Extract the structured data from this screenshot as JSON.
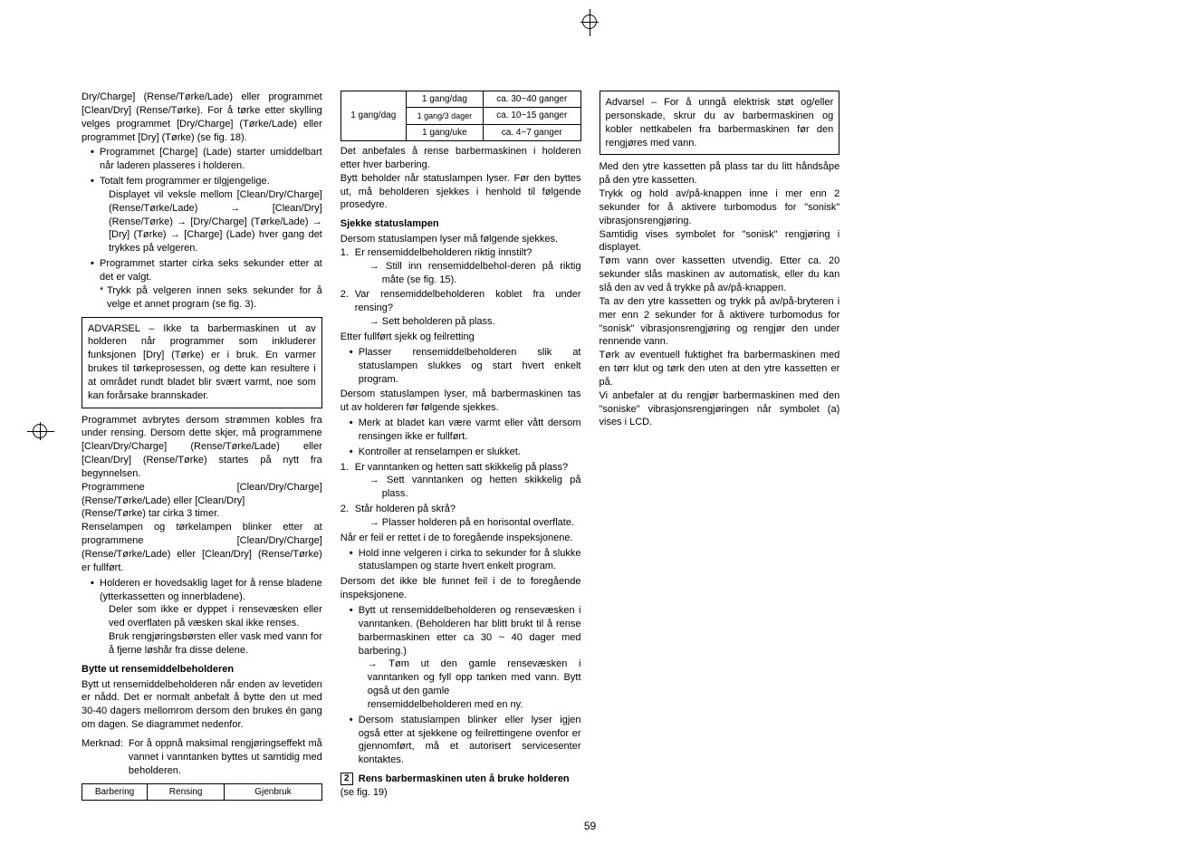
{
  "page_number": "59",
  "col1": {
    "intro": "Dry/Charge] (Rense/Tørke/Lade) eller programmet [Clean/Dry] (Rense/Tørke). For å tørke etter skylling velges programmet [Dry/Charge] (Tørke/Lade) eller programmet [Dry] (Tørke) (se fig. 18).",
    "b1": "Programmet [Charge] (Lade) starter umiddelbart når laderen plasseres i holderen.",
    "b2": "Totalt fem programmer er tilgjengelige.",
    "b2sub": "Displayet vil veksle mellom [Clean/Dry/Charge] (Rense/Tørke/Lade) → [Clean/Dry] (Rense/Tørke) → [Dry/Charge] (Tørke/Lade) → [Dry] (Tørke) → [Charge] (Lade) hver gang det trykkes på velgeren.",
    "b3": "Programmet starter cirka seks sekunder etter at det er valgt.",
    "b3note": "Trykk på velgeren innen seks sekunder for å velge et annet program (se fig. 3).",
    "warn": "ADVARSEL – Ikke ta barbermaskinen ut av holderen når programmer som inkluderer funksjonen [Dry] (Tørke) er i bruk. En varmer brukes til tørkeprosessen, og dette kan resultere i at området rundt bladet blir svært varmt, noe som kan forårsake brannskader.",
    "p2": "Programmet avbrytes dersom strømmen kobles fra under rensing. Dersom dette skjer, må programmene [Clean/Dry/Charge] (Rense/Tørke/Lade) eller [Clean/Dry] (Rense/Tørke) startes på nytt fra begynnelsen.",
    "p3": "Programmene [Clean/Dry/Charge] (Rense/Tørke/Lade) eller [Clean/Dry]"
  },
  "col2": {
    "p1": "(Rense/Tørke) tar cirka 3 timer.",
    "p2": "Renselampen og tørkelampen blinker etter at programmene [Clean/Dry/Charge] (Rense/Tørke/Lade) eller [Clean/Dry] (Rense/Tørke) er fullført.",
    "b1": "Holderen er hovedsaklig laget for å rense bladene (ytterkassetten og innerbladene).",
    "b1sub1": "Deler som ikke er dyppet i rensevæsken eller ved overflaten på væsken skal ikke renses.",
    "b1sub2": "Bruk rengjøringsbørsten eller vask med vann for å fjerne løshår fra disse delene.",
    "h1": "Bytte ut rensemiddelbeholderen",
    "p3": "Bytt ut rensemiddelbeholderen når enden av levetiden er nådd.  Det er normalt anbefalt å bytte den ut med 30-40 dagers mellomrom dersom den brukes én gang om dagen.  Se diagrammet nedenfor.",
    "merknad_label": "Merknad:",
    "merknad_body": "For å oppnå maksimal rengjøringseffekt må vannet i vanntanken byttes ut samtidig med beholderen.",
    "table": {
      "h1": "Barbering",
      "h2": "Rensing",
      "h3": "Gjenbruk",
      "r1c1": "1 gang/dag",
      "r1c2": "1 gang/dag",
      "r1c3": "ca. 30~40 ganger",
      "r2c2": "1 gang/3 dager",
      "r2c3": "ca. 10~15 ganger",
      "r3c2": "1 gang/uke",
      "r3c3": "ca. 4~7 ganger"
    },
    "p4": "Det anbefales å rense barbermaskinen i holderen etter hver barbering.",
    "p5": "Bytt beholder når statuslampen lyser. Før den byttes ut, må beholderen sjekkes i henhold til følgende prosedyre.",
    "h2": "Sjekke statuslampen",
    "p6": "Dersom statuslampen lyser må følgende sjekkes.",
    "n1": "Er rensemiddelbeholderen riktig"
  },
  "col3": {
    "n1cont": "innstilt?",
    "n1a": "→ Still inn rensemiddelbehol-deren på riktig måte (se fig. 15).",
    "n2": "Var rensemiddelbeholderen koblet fra under rensing?",
    "n2a": "→ Sett beholderen på plass.",
    "p1": "Etter fullført sjekk og feilretting",
    "b1": "Plasser rensemiddelbeholderen slik at statuslampen slukkes og start hvert enkelt program.",
    "p2": "Dersom statuslampen lyser, må barbermaskinen tas ut av holderen før følgende sjekkes.",
    "b2": "Merk at bladet kan være varmt eller vått dersom rensingen ikke er fullført.",
    "b3": "Kontroller at renselampen er slukket.",
    "n3": "Er vanntanken og hetten satt skikkelig på plass?",
    "n3a": "→ Sett vanntanken og hetten skikkelig på plass.",
    "n4": "Står holderen på skrå?",
    "n4a": "→ Plasser holderen på en horisontal overflate.",
    "p3": "Når er feil er rettet i de to foregående inspeksjonene.",
    "b4": "Hold inne velgeren i cirka to sekunder for å slukke statuslampen og starte hvert enkelt program.",
    "p4": "Dersom det ikke ble funnet feil i de to foregående inspeksjonene.",
    "b5": "Bytt ut rensemiddelbeholderen og rensevæsken i vanntanken. (Beholderen har blitt brukt til å rense barbermaskinen etter ca 30 ~ 40 dager med barbering.)",
    "b5a": "→ Tøm ut den gamle rensevæsken i vanntanken og fyll opp tanken med vann.  Bytt også ut den gamle"
  },
  "col4": {
    "p1": "rensemiddelbeholderen med en ny.",
    "b1": "Dersom statuslampen blinker eller lyser igjen også etter at sjekkene og feilrettingene ovenfor er gjennomført, må et autorisert servicesenter kontaktes.",
    "step_num": "2",
    "step_title": "Rens barbermaskinen uten å bruke holderen",
    "step_ref": "(se fig. 19)",
    "warn": "Advarsel – For å unngå elektrisk støt og/eller personskade, skrur du av barbermaskinen og kobler nettkabelen fra barbermaskinen før den rengjøres med vann.",
    "p2": "Med den ytre kassetten på plass tar du litt håndsåpe på den ytre kassetten.",
    "p3": "Trykk og hold av/på-knappen inne i mer enn 2 sekunder for å aktivere turbomodus for \"sonisk\" vibrasjonsrengjøring.",
    "p4": "Samtidig vises symbolet for \"sonisk\" rengjøring i displayet.",
    "p5": "Tøm vann over kassetten utvendig. Etter ca. 20 sekunder slås maskinen av automatisk, eller du kan slå den av ved å trykke på av/på-knappen.",
    "p6": "Ta av den ytre kassetten og trykk på av/på-bryteren i mer enn 2 sekunder for å aktivere turbomodus for \"sonisk\" vibrasjonsrengjøring og rengjør den under rennende vann.",
    "p7": "Tørk av eventuell fuktighet fra barbermaskinen med en tørr klut og tørk den uten at den ytre kassetten er på.",
    "p8": "Vi anbefaler at du rengjør barbermaskinen med den \"soniske\" vibrasjonsrengjøringen når symbolet (a) vises i LCD."
  }
}
